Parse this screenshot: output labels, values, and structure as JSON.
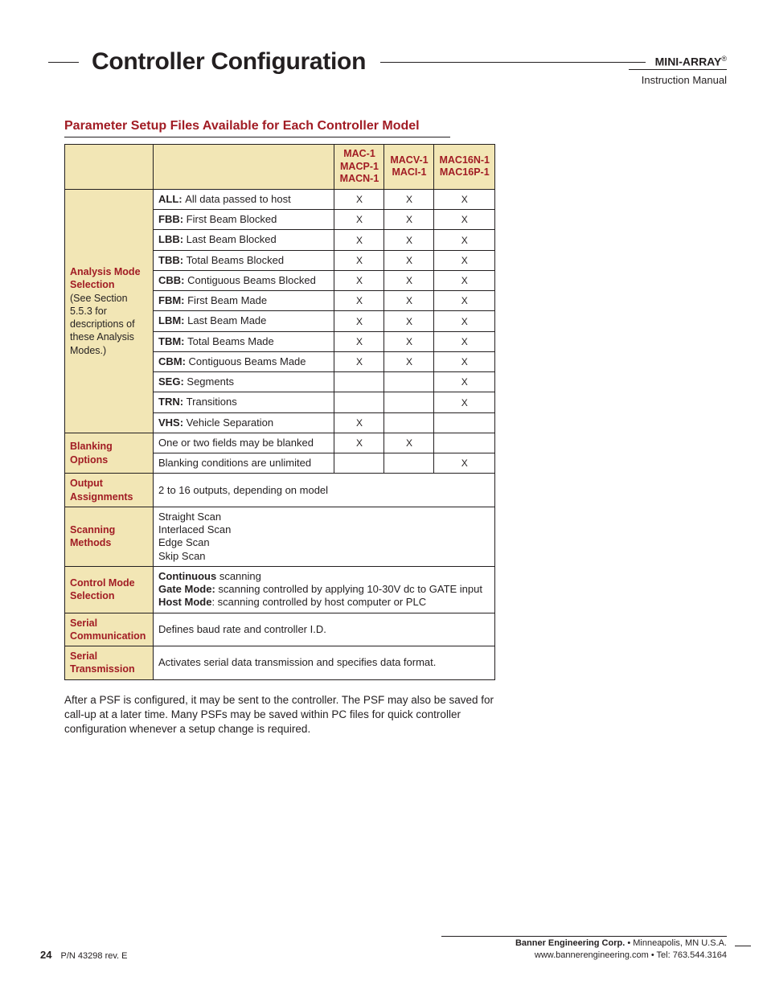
{
  "header": {
    "title": "Controller Configuration",
    "brand": "MINI-ARRAY",
    "brand_mark": "®",
    "subtitle": "Instruction Manual"
  },
  "section": {
    "heading": "Parameter Setup Files Available for Each Controller Model"
  },
  "table": {
    "col_headers": [
      [
        "MAC-1",
        "MACP-1",
        "MACN-1"
      ],
      [
        "MACV-1",
        "MACI-1"
      ],
      [
        "MAC16N-1",
        "MAC16P-1"
      ]
    ],
    "groups": [
      {
        "title": "Analysis Mode Selection",
        "sub": "(See Section 5.5.3 for descriptions of these Analysis Modes.)",
        "rows": [
          {
            "code": "ALL:",
            "desc": "All data passed to host",
            "x": [
              "X",
              "X",
              "X"
            ]
          },
          {
            "code": "FBB:",
            "desc": "First Beam Blocked",
            "x": [
              "X",
              "X",
              "X"
            ],
            "codeLight": true
          },
          {
            "code": "LBB:",
            "desc": "Last Beam Blocked",
            "x": [
              "X",
              "X",
              "X"
            ]
          },
          {
            "code": "TBB:",
            "desc": "Total Beams Blocked",
            "x": [
              "X",
              "X",
              "X"
            ]
          },
          {
            "code": "CBB:",
            "desc": "Contiguous Beams Blocked",
            "x": [
              "X",
              "X",
              "X"
            ]
          },
          {
            "code": "FBM:",
            "desc": "First Beam Made",
            "x": [
              "X",
              "X",
              "X"
            ]
          },
          {
            "code": "LBM:",
            "desc": "Last Beam Made",
            "x": [
              "X",
              "X",
              "X"
            ]
          },
          {
            "code": "TBM:",
            "desc": "Total Beams Made",
            "x": [
              "X",
              "X",
              "X"
            ]
          },
          {
            "code": "CBM:",
            "desc": "Contiguous Beams Made",
            "x": [
              "X",
              "X",
              "X"
            ]
          },
          {
            "code": "SEG:",
            "desc": "Segments",
            "x": [
              "",
              "",
              "X"
            ]
          },
          {
            "code": "TRN:",
            "desc": "Transitions",
            "x": [
              "",
              "",
              "X"
            ]
          },
          {
            "code": "VHS:",
            "desc": "Vehicle Separation",
            "x": [
              "X",
              "",
              ""
            ]
          }
        ]
      },
      {
        "title": "Blanking Options",
        "rows": [
          {
            "desc": "One or two fields may be blanked",
            "x": [
              "X",
              "X",
              ""
            ]
          },
          {
            "desc": "Blanking conditions are unlimited",
            "x": [
              "",
              "",
              "X"
            ]
          }
        ]
      },
      {
        "title": "Output Assignments",
        "span_rows": [
          {
            "desc": "2 to 16 outputs, depending on model"
          }
        ]
      },
      {
        "title": "Scanning Methods",
        "span_rows": [
          {
            "desc_lines": [
              "Straight Scan",
              "Interlaced Scan",
              "Edge Scan",
              "Skip Scan"
            ]
          }
        ]
      },
      {
        "title": "Control Mode Selection",
        "span_rows": [
          {
            "rich": [
              {
                "b": "Continuous",
                "t": " scanning"
              },
              {
                "br": true
              },
              {
                "b": "Gate Mode:",
                "t": " scanning controlled by applying 10-30V dc to GATE input"
              },
              {
                "br": true
              },
              {
                "b": "Host Mode",
                "t": ": scanning controlled by host computer or PLC"
              }
            ]
          }
        ]
      },
      {
        "title": "Serial Communication",
        "span_rows": [
          {
            "desc": "Defines baud rate and controller I.D."
          }
        ]
      },
      {
        "title": "Serial Transmission",
        "span_rows": [
          {
            "desc": "Activates serial data transmission and specifies data format."
          }
        ]
      }
    ]
  },
  "body_text": "After a PSF is configured, it may be sent to the controller. The PSF may also be saved for call-up at a later time. Many PSFs may be saved within PC files for quick controller configuration whenever a setup change is required.",
  "footer": {
    "page_num": "24",
    "part_no": "P/N 43298 rev. E",
    "company_line1_bold": "Banner Engineering Corp.",
    "company_line1_rest": " • Minneapolis, MN U.S.A.",
    "company_line2": "www.bannerengineering.com  •  Tel: 763.544.3164"
  },
  "style": {
    "accent_color": "#a11c24",
    "header_bg": "#f2e6b5",
    "text_color": "#231f20",
    "page_bg": "#ffffff"
  }
}
